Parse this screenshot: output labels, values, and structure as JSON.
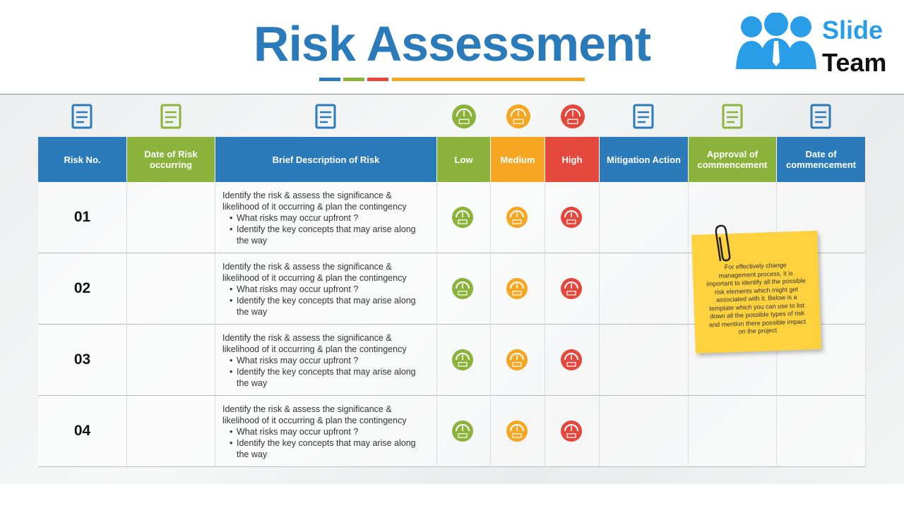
{
  "header": {
    "title": "Risk Assessment",
    "logo": [
      "Slide",
      "Team"
    ]
  },
  "table": {
    "columns": [
      "Risk No.",
      "Date of Risk occurring",
      "Brief Description of Risk",
      "Low",
      "Medium",
      "High",
      "Mitigation Action",
      "Approval of commencement",
      "Date of commencement"
    ],
    "rows": [
      {
        "number": "01",
        "description": "Identify the risk & assess the significance & likelihood of it occurring & plan the contingency",
        "bullets": [
          "What risks may occur upfront ?",
          "Identify the key concepts that may arise along the way"
        ]
      },
      {
        "number": "02",
        "description": "Identify the risk & assess the significance & likelihood of it occurring & plan the contingency",
        "bullets": [
          "What risks may occur upfront ?",
          "Identify the key concepts that may arise along the way"
        ]
      },
      {
        "number": "03",
        "description": "Identify the risk & assess the significance & likelihood of it occurring & plan the contingency",
        "bullets": [
          "What risks may occur upfront ?",
          "Identify the key concepts that may arise along the way"
        ]
      },
      {
        "number": "04",
        "description": "Identify the risk & assess the significance & likelihood of it occurring & plan the contingency",
        "bullets": [
          "What risks may occur upfront ?",
          "Identify the key concepts that may arise along the way"
        ]
      }
    ]
  },
  "note": {
    "text": "For effectively change management process, it is important to identify all the possible risk elements  which might get associated with it. Below is a template which you can use to list down all the possible types of risk and mention there possible impact on the project"
  }
}
